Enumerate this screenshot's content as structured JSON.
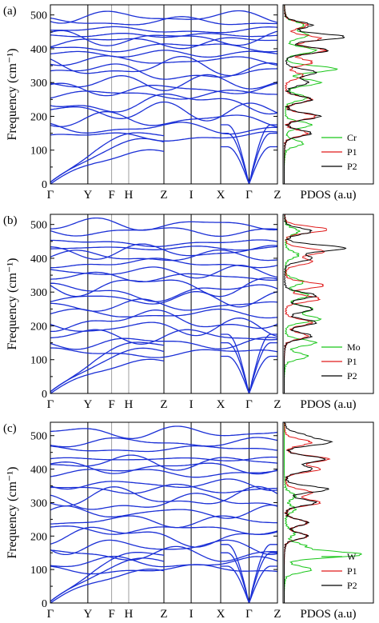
{
  "chart_data": [
    {
      "type": "line",
      "panel_label": "(a)",
      "ylabel": "Frequency (cm⁻¹)",
      "ylim": [
        0,
        530
      ],
      "yticks": [
        0,
        100,
        200,
        300,
        400,
        500
      ],
      "kpoints": [
        "Γ",
        "Y",
        "F",
        "H",
        "Z",
        "I",
        "X",
        "Γ",
        "Z"
      ],
      "band_color": "#1a2fd6",
      "band_offsets": [
        140,
        165,
        190,
        215,
        240,
        265,
        280,
        300,
        330,
        345,
        365,
        385,
        405,
        420,
        430,
        440,
        455,
        480,
        495
      ],
      "pdos": {
        "xlabel": "PDOS (a.u)",
        "legend": [
          "Cr",
          "P1",
          "P2"
        ],
        "legend_position": "lower-right",
        "colors": [
          "#19c619",
          "#e01b1b",
          "#000000"
        ],
        "peaks": [
          [
            [
              120,
              4
            ],
            [
              175,
              6
            ],
            [
              255,
              5
            ],
            [
              300,
              8
            ],
            [
              340,
              12
            ],
            [
              395,
              7
            ],
            [
              440,
              5
            ],
            [
              470,
              4
            ]
          ],
          [
            [
              150,
              5
            ],
            [
              200,
              7
            ],
            [
              250,
              6
            ],
            [
              320,
              4
            ],
            [
              360,
              6
            ],
            [
              395,
              9
            ],
            [
              430,
              8
            ],
            [
              470,
              5
            ]
          ],
          [
            [
              150,
              6
            ],
            [
              200,
              8
            ],
            [
              250,
              6
            ],
            [
              300,
              5
            ],
            [
              330,
              7
            ],
            [
              395,
              10
            ],
            [
              435,
              14
            ],
            [
              470,
              6
            ]
          ]
        ]
      }
    },
    {
      "type": "line",
      "panel_label": "(b)",
      "ylabel": "Frequency (cm⁻¹)",
      "ylim": [
        0,
        530
      ],
      "yticks": [
        0,
        100,
        200,
        300,
        400,
        500
      ],
      "kpoints": [
        "Γ",
        "Y",
        "F",
        "H",
        "Z",
        "I",
        "X",
        "Γ",
        "Z"
      ],
      "band_color": "#1a2fd6",
      "band_offsets": [
        120,
        150,
        170,
        195,
        215,
        235,
        260,
        280,
        300,
        320,
        345,
        360,
        385,
        405,
        420,
        430,
        445,
        480,
        500
      ],
      "pdos": {
        "xlabel": "PDOS (a.u)",
        "legend": [
          "Mo",
          "P1",
          "P2"
        ],
        "legend_position": "lower-right",
        "colors": [
          "#19c619",
          "#e01b1b",
          "#000000"
        ],
        "peaks": [
          [
            [
              110,
              5
            ],
            [
              150,
              7
            ],
            [
              220,
              8
            ],
            [
              250,
              6
            ],
            [
              290,
              5
            ],
            [
              330,
              4
            ],
            [
              410,
              3
            ],
            [
              480,
              3
            ]
          ],
          [
            [
              170,
              5
            ],
            [
              210,
              6
            ],
            [
              280,
              8
            ],
            [
              320,
              9
            ],
            [
              390,
              6
            ],
            [
              420,
              9
            ],
            [
              485,
              10
            ]
          ],
          [
            [
              170,
              6
            ],
            [
              210,
              7
            ],
            [
              250,
              6
            ],
            [
              290,
              7
            ],
            [
              400,
              6
            ],
            [
              430,
              14
            ],
            [
              480,
              6
            ]
          ]
        ]
      }
    },
    {
      "type": "line",
      "panel_label": "(c)",
      "ylabel": "Frequency (cm⁻¹)",
      "ylim": [
        0,
        540
      ],
      "yticks": [
        0,
        100,
        200,
        300,
        400,
        500
      ],
      "kpoints": [
        "Γ",
        "Y",
        "F",
        "H",
        "Z",
        "I",
        "X",
        "Γ",
        "Z"
      ],
      "band_color": "#1a2fd6",
      "band_offsets": [
        100,
        120,
        145,
        170,
        200,
        220,
        245,
        270,
        300,
        315,
        340,
        355,
        390,
        405,
        420,
        430,
        460,
        480,
        510
      ],
      "pdos": {
        "xlabel": "PDOS (a.u)",
        "legend": [
          "W",
          "P1",
          "P2"
        ],
        "legend_position": "lower-right",
        "colors": [
          "#19c619",
          "#e01b1b",
          "#000000"
        ],
        "peaks": [
          [
            [
              100,
              6
            ],
            [
              145,
              18
            ],
            [
              170,
              4
            ],
            [
              210,
              2
            ],
            [
              280,
              2
            ],
            [
              320,
              2
            ]
          ],
          [
            [
              200,
              5
            ],
            [
              240,
              5
            ],
            [
              300,
              8
            ],
            [
              330,
              6
            ],
            [
              400,
              8
            ],
            [
              430,
              10
            ],
            [
              480,
              6
            ]
          ],
          [
            [
              200,
              5
            ],
            [
              240,
              5
            ],
            [
              300,
              7
            ],
            [
              340,
              10
            ],
            [
              400,
              6
            ],
            [
              430,
              9
            ],
            [
              480,
              10
            ],
            [
              500,
              4
            ]
          ]
        ]
      }
    }
  ]
}
